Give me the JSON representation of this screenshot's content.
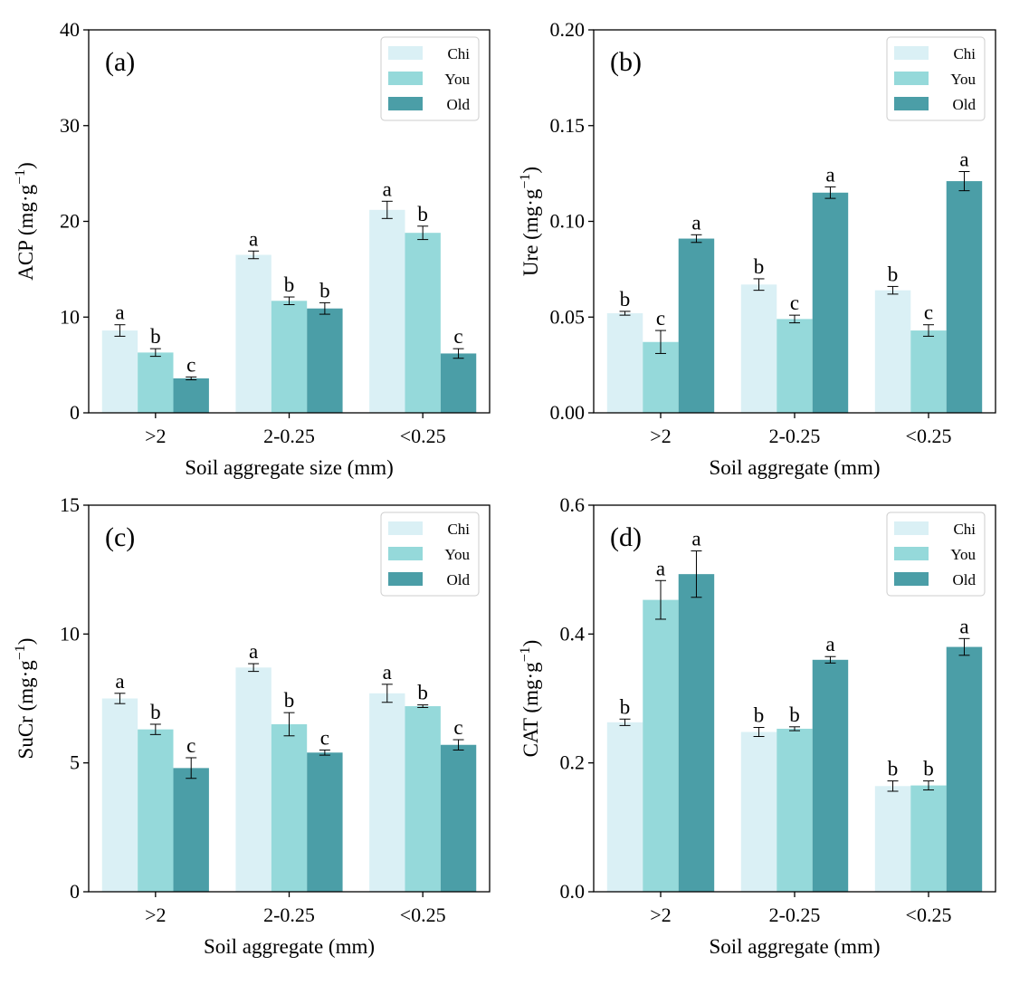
{
  "chart_data": [
    {
      "type": "bar",
      "panel_label": "(a)",
      "categories": [
        ">2",
        "2-0.25",
        "<0.25"
      ],
      "series": [
        {
          "name": "Chi",
          "color": "#daf0f5",
          "values": [
            8.6,
            16.5,
            21.2
          ],
          "errors": [
            0.6,
            0.4,
            0.9
          ],
          "letters": [
            "a",
            "a",
            "a"
          ]
        },
        {
          "name": "You",
          "color": "#95d9da",
          "values": [
            6.3,
            11.7,
            18.8
          ],
          "errors": [
            0.4,
            0.4,
            0.7
          ],
          "letters": [
            "b",
            "b",
            "b"
          ]
        },
        {
          "name": "Old",
          "color": "#4b9ea7",
          "values": [
            3.6,
            10.9,
            6.2
          ],
          "errors": [
            0.15,
            0.6,
            0.5
          ],
          "letters": [
            "c",
            "b",
            "c"
          ]
        }
      ],
      "xlabel": "Soil aggregate size (mm)",
      "ylabel_main": "ACP (mg·g",
      "ylabel_sup": "−1",
      "ylabel_end": ")",
      "ylim": [
        0,
        40
      ],
      "yticks": [
        0,
        10,
        20,
        30,
        40
      ],
      "ytick_labels": [
        "0",
        "10",
        "20",
        "30",
        "40"
      ],
      "grid": false,
      "legend": "top-right"
    },
    {
      "type": "bar",
      "panel_label": "(b)",
      "categories": [
        ">2",
        "2-0.25",
        "<0.25"
      ],
      "series": [
        {
          "name": "Chi",
          "color": "#daf0f5",
          "values": [
            0.052,
            0.067,
            0.064
          ],
          "errors": [
            0.001,
            0.003,
            0.002
          ],
          "letters": [
            "b",
            "b",
            "b"
          ]
        },
        {
          "name": "You",
          "color": "#95d9da",
          "values": [
            0.037,
            0.049,
            0.043
          ],
          "errors": [
            0.006,
            0.002,
            0.003
          ],
          "letters": [
            "c",
            "c",
            "c"
          ]
        },
        {
          "name": "Old",
          "color": "#4b9ea7",
          "values": [
            0.091,
            0.115,
            0.121
          ],
          "errors": [
            0.002,
            0.003,
            0.005
          ],
          "letters": [
            "a",
            "a",
            "a"
          ]
        }
      ],
      "xlabel": "Soil aggregate (mm)",
      "ylabel_main": "Ure (mg·g",
      "ylabel_sup": "−1",
      "ylabel_end": ")",
      "ylim": [
        0,
        0.2
      ],
      "yticks": [
        0,
        0.05,
        0.1,
        0.15,
        0.2
      ],
      "ytick_labels": [
        "0.00",
        "0.05",
        "0.10",
        "0.15",
        "0.20"
      ],
      "grid": false,
      "legend": "top-right"
    },
    {
      "type": "bar",
      "panel_label": "(c)",
      "categories": [
        ">2",
        "2-0.25",
        "<0.25"
      ],
      "series": [
        {
          "name": "Chi",
          "color": "#daf0f5",
          "values": [
            7.5,
            8.7,
            7.7
          ],
          "errors": [
            0.2,
            0.15,
            0.35
          ],
          "letters": [
            "a",
            "a",
            "a"
          ]
        },
        {
          "name": "You",
          "color": "#95d9da",
          "values": [
            6.3,
            6.5,
            7.2
          ],
          "errors": [
            0.2,
            0.45,
            0.05
          ],
          "letters": [
            "b",
            "b",
            "b"
          ]
        },
        {
          "name": "Old",
          "color": "#4b9ea7",
          "values": [
            4.8,
            5.4,
            5.7
          ],
          "errors": [
            0.4,
            0.1,
            0.2
          ],
          "letters": [
            "c",
            "c",
            "c"
          ]
        }
      ],
      "xlabel": "Soil aggregate (mm)",
      "ylabel_main": "SuCr (mg·g",
      "ylabel_sup": "−1",
      "ylabel_end": ")",
      "ylim": [
        0,
        15
      ],
      "yticks": [
        0,
        5,
        10,
        15
      ],
      "ytick_labels": [
        "0",
        "5",
        "10",
        "15"
      ],
      "grid": false,
      "legend": "top-right"
    },
    {
      "type": "bar",
      "panel_label": "(d)",
      "categories": [
        ">2",
        "2-0.25",
        "<0.25"
      ],
      "series": [
        {
          "name": "Chi",
          "color": "#daf0f5",
          "values": [
            0.263,
            0.248,
            0.164
          ],
          "errors": [
            0.005,
            0.007,
            0.008
          ],
          "letters": [
            "b",
            "b",
            "b"
          ]
        },
        {
          "name": "You",
          "color": "#95d9da",
          "values": [
            0.453,
            0.253,
            0.165
          ],
          "errors": [
            0.03,
            0.003,
            0.007
          ],
          "letters": [
            "a",
            "b",
            "b"
          ]
        },
        {
          "name": "Old",
          "color": "#4b9ea7",
          "values": [
            0.493,
            0.36,
            0.38
          ],
          "errors": [
            0.036,
            0.005,
            0.013
          ],
          "letters": [
            "a",
            "a",
            "a"
          ]
        }
      ],
      "xlabel": "Soil aggregate (mm)",
      "ylabel_main": "CAT (mg·g",
      "ylabel_sup": "−1",
      "ylabel_end": ")",
      "ylim": [
        0,
        0.6
      ],
      "yticks": [
        0,
        0.2,
        0.4,
        0.6
      ],
      "ytick_labels": [
        "0.0",
        "0.2",
        "0.4",
        "0.6"
      ],
      "grid": false,
      "legend": "top-right"
    }
  ]
}
